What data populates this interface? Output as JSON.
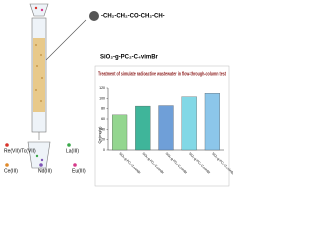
{
  "chart_data": {
    "type": "bar",
    "title": "Treatment of simulate radioactive wastewater in flow-through-column test",
    "y_label": "Qe(mg/g)",
    "categories": [
      "SiO₂-g-PC₂-C₂vimBr",
      "SiO₂-g-PC₂-C₄vimBr",
      "SiO₂-g-PC₂-C₆vimBr",
      "SiO₂-g-PC₂-C₈vimBr",
      "SiO₂-g-PC₂-C₁₀vimBr"
    ],
    "values": [
      68,
      85,
      86,
      103,
      110
    ],
    "colors": [
      "#93d68f",
      "#3fb59a",
      "#6f9fd8",
      "#82d8e6",
      "#8cc6ea"
    ],
    "ylim": [
      0,
      120
    ],
    "yticks": [
      0,
      20,
      40,
      60,
      80,
      100,
      120
    ]
  },
  "diagram": {
    "adsorbent": "SiO₂-g-PC₂-C₄vimBr",
    "structure": "-CH₂-CH₂-CO-CH₂-CH-",
    "ions": [
      {
        "label": "Re(VII)/Tc(VII)",
        "color": "#d9342b"
      },
      {
        "label": "La(III)",
        "color": "#3aa84a"
      },
      {
        "label": "Ce(III)",
        "color": "#e08a2a"
      },
      {
        "label": "Nd(III)",
        "color": "#7f55b5"
      },
      {
        "label": "Eu(III)",
        "color": "#d63a8a"
      }
    ]
  }
}
